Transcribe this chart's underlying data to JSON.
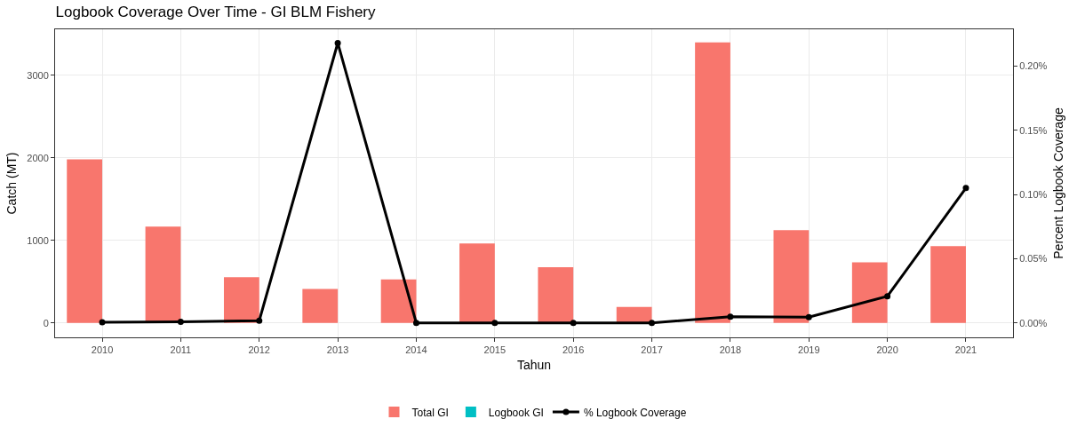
{
  "chart_data": {
    "type": "bar",
    "title": "Logbook Coverage Over Time - GI BLM Fishery",
    "xlabel": "Tahun",
    "ylabel": "Catch (MT)",
    "y2label": "Percent Logbook Coverage",
    "categories": [
      "2010",
      "2011",
      "2012",
      "2013",
      "2014",
      "2015",
      "2016",
      "2017",
      "2018",
      "2019",
      "2020",
      "2021"
    ],
    "series": [
      {
        "name": "Total GI",
        "color": "#f8766d",
        "values": [
          1980,
          1165,
          554,
          412,
          527,
          962,
          675,
          193,
          3397,
          1124,
          733,
          930
        ]
      },
      {
        "name": "Logbook GI",
        "color": "#00bfc4",
        "values": [
          0,
          0,
          0,
          0,
          0,
          0,
          0,
          0,
          0,
          0,
          0,
          0
        ]
      },
      {
        "name": "% Logbook Coverage",
        "type": "line",
        "axis": "y2",
        "color": "#000000",
        "marker": "circle",
        "line_style": "solid",
        "values": [
          0.0005,
          0.0008,
          0.0017,
          0.218,
          0,
          0,
          0,
          0,
          0.0048,
          0.0045,
          0.0207,
          0.105
        ]
      }
    ],
    "ylim": [
      -175,
      3556
    ],
    "yticks": [
      0,
      1000,
      2000,
      3000
    ],
    "y2lim": [
      -0.0113,
      0.2287
    ],
    "y2ticks": [
      {
        "value": 0,
        "label": "0.00%"
      },
      {
        "value": 0.05,
        "label": "0.05%"
      },
      {
        "value": 0.1,
        "label": "0.10%"
      },
      {
        "value": 0.15,
        "label": "0.15%"
      },
      {
        "value": 0.2,
        "label": "0.20%"
      }
    ],
    "grid": true,
    "legend": "bottom"
  }
}
